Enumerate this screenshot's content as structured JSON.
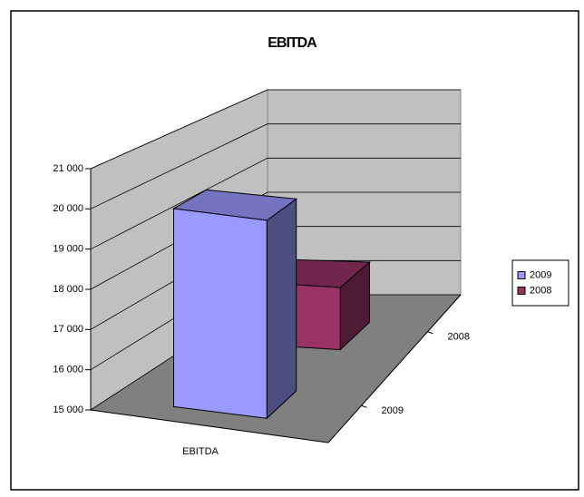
{
  "chart_data": {
    "type": "bar3d",
    "title": "EBITDA",
    "categories": [
      "EBITDA"
    ],
    "series": [
      {
        "name": "2009",
        "color": "#9999ff",
        "values": [
          20000
        ]
      },
      {
        "name": "2008",
        "color": "#993366",
        "values": [
          16700
        ]
      }
    ],
    "ylim": [
      15000,
      21000
    ],
    "yticks": [
      {
        "value": 15000,
        "label": "15 000"
      },
      {
        "value": 16000,
        "label": "16 000"
      },
      {
        "value": 17000,
        "label": "17 000"
      },
      {
        "value": 18000,
        "label": "18 000"
      },
      {
        "value": 19000,
        "label": "19 000"
      },
      {
        "value": 20000,
        "label": "20 000"
      },
      {
        "value": 21000,
        "label": "21 000"
      }
    ],
    "grid": true,
    "legend": "right"
  }
}
